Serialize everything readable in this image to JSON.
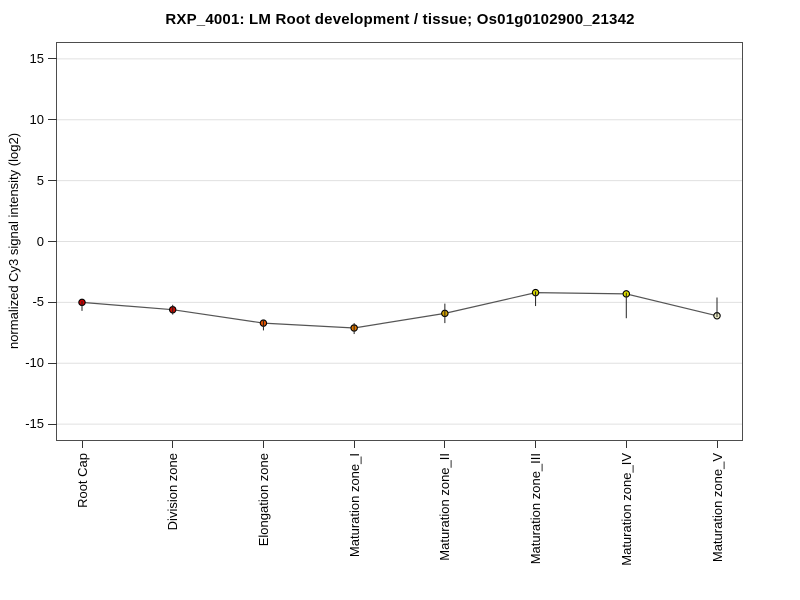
{
  "chart_data": {
    "type": "line",
    "title": "RXP_4001: LM Root development / tissue; Os01g0102900_21342",
    "xlabel": "",
    "ylabel": "normalized Cy3 signal intensity (log2)",
    "categories": [
      "Root Cap",
      "Division zone",
      "Elongation zone",
      "Maturation zone_I",
      "Maturation zone_II",
      "Maturation zone_III",
      "Maturation zone_IV",
      "Maturation zone_V"
    ],
    "series": [
      {
        "name": "normalized Cy3 signal intensity (log2)",
        "values": [
          -5.0,
          -5.6,
          -6.7,
          -7.1,
          -5.9,
          -4.2,
          -4.3,
          -6.1
        ],
        "error_low": [
          -5.7,
          -6.0,
          -7.3,
          -7.6,
          -6.7,
          -5.3,
          -6.3,
          -6.2
        ],
        "error_high": [
          -4.9,
          -5.2,
          -6.4,
          -6.7,
          -5.1,
          -4.1,
          -4.2,
          -4.6
        ],
        "point_colors": [
          "#cc0000",
          "#cc0d00",
          "#e05400",
          "#e07800",
          "#d4a300",
          "#d4d400",
          "#e2e200",
          "#e9e9c4"
        ]
      }
    ],
    "yticks": [
      -15,
      -10,
      -5,
      0,
      5,
      10,
      15
    ],
    "ylim": [
      -16.3,
      16.3
    ],
    "grid": true,
    "legend": "none",
    "gridline_color": "#e0e0e0",
    "line_color": "#555555",
    "error_bar_color": "#222222",
    "marker_outline_color": "#000000",
    "frame_color": "#4d4d4d"
  }
}
